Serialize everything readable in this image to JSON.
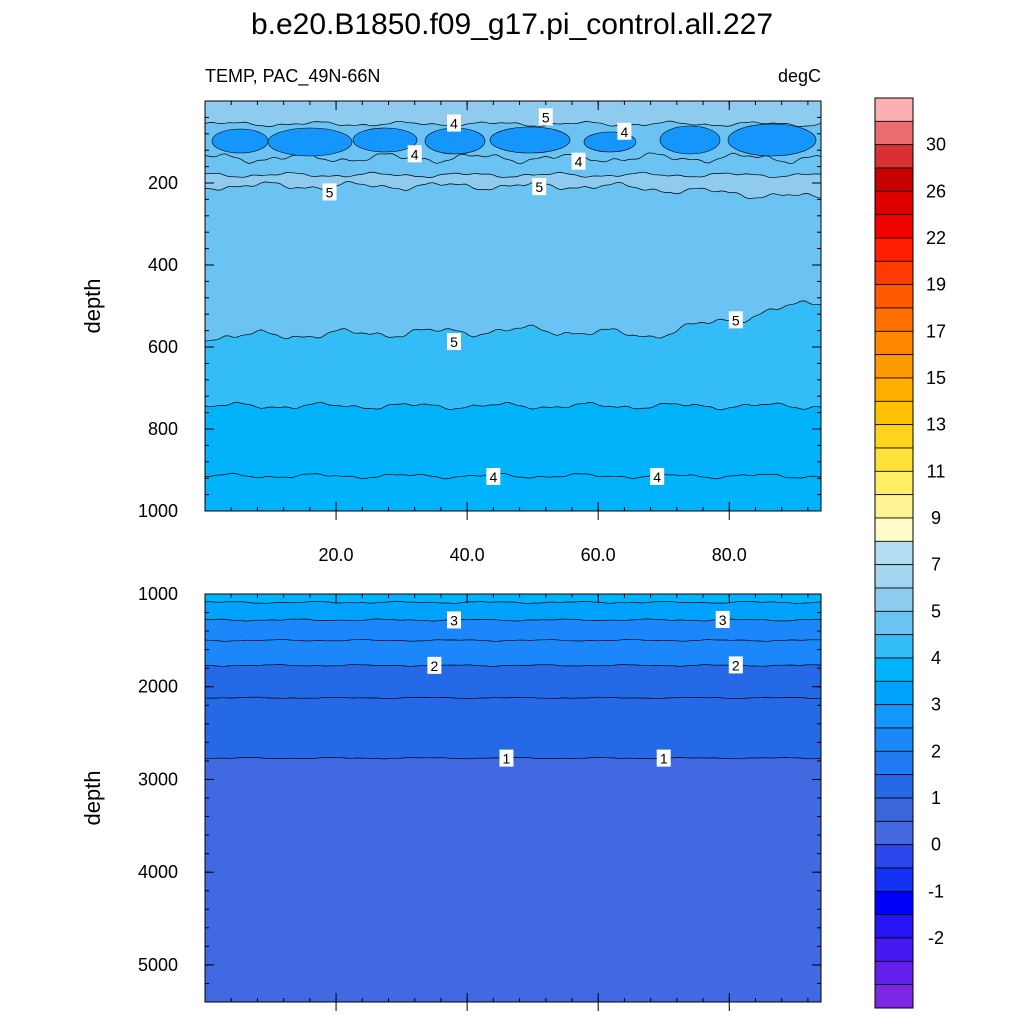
{
  "chart_data": {
    "type": "contour",
    "title": "b.e20.B1850.f09_g17.pi_control.all.227",
    "variable_label": "TEMP, PAC_49N-66N",
    "units_label": "degC",
    "x": {
      "range": [
        0,
        94
      ],
      "ticks": [
        20,
        40,
        60,
        80
      ],
      "tick_labels": [
        "20.0",
        "40.0",
        "60.0",
        "80.0"
      ]
    },
    "panels": [
      {
        "name": "upper",
        "ylabel": "depth",
        "yrange": [
          0,
          1000
        ],
        "y_reversed": true,
        "yticks": [
          200,
          400,
          600,
          800,
          1000
        ],
        "ytick_labels": [
          "200",
          "400",
          "600",
          "800",
          "1000"
        ],
        "contour_labels": [
          {
            "text": "5",
            "x": 52,
            "y": 40
          },
          {
            "text": "4",
            "x": 38,
            "y": 55
          },
          {
            "text": "4",
            "x": 64,
            "y": 75
          },
          {
            "text": "4",
            "x": 32,
            "y": 130
          },
          {
            "text": "4",
            "x": 57,
            "y": 148
          },
          {
            "text": "5",
            "x": 19,
            "y": 223
          },
          {
            "text": "5",
            "x": 51,
            "y": 210
          },
          {
            "text": "5",
            "x": 81,
            "y": 535
          },
          {
            "text": "5",
            "x": 38,
            "y": 588
          },
          {
            "text": "4",
            "x": 44,
            "y": 917
          },
          {
            "text": "4",
            "x": 69,
            "y": 917
          }
        ]
      },
      {
        "name": "lower",
        "ylabel": "depth",
        "yrange": [
          1000,
          5400
        ],
        "y_reversed": true,
        "yticks": [
          1000,
          2000,
          3000,
          4000,
          5000
        ],
        "ytick_labels": [
          "1000",
          "2000",
          "3000",
          "4000",
          "5000"
        ],
        "contour_labels": [
          {
            "text": "3",
            "x": 38,
            "y": 1285
          },
          {
            "text": "3",
            "x": 79,
            "y": 1280
          },
          {
            "text": "2",
            "x": 35,
            "y": 1775
          },
          {
            "text": "2",
            "x": 81,
            "y": 1770
          },
          {
            "text": "1",
            "x": 46,
            "y": 2775
          },
          {
            "text": "1",
            "x": 70,
            "y": 2775
          }
        ]
      }
    ],
    "colorbar": {
      "labels": [
        "30",
        "26",
        "22",
        "19",
        "17",
        "15",
        "13",
        "11",
        "9",
        "7",
        "5",
        "4",
        "3",
        "2",
        "1",
        "0",
        "-1",
        "-2"
      ],
      "colors": [
        "#FDB0B4",
        "#EB6E6E",
        "#D93131",
        "#C70000",
        "#DF0000",
        "#F40000",
        "#FF1C00",
        "#FF3A00",
        "#FF5A00",
        "#FF7000",
        "#FF8600",
        "#FF9A00",
        "#FFAE00",
        "#FFC200",
        "#FFD41A",
        "#FFE238",
        "#FFEE66",
        "#FFF494",
        "#FFFCC8",
        "#B5DDF1",
        "#A4D6EF",
        "#8ECBEE",
        "#6BC3F3",
        "#33BCF6",
        "#00B3FA",
        "#00A3FB",
        "#1496FC",
        "#1C87FB",
        "#2078F3",
        "#2669E6",
        "#3A66DC",
        "#4468DE",
        "#2B48EC",
        "#1431F5",
        "#0000FA",
        "#2514F4",
        "#4519F0",
        "#631FEB",
        "#7E26E6"
      ]
    },
    "fill_colors": {
      "top_warm": "#8ECBEE",
      "core_cold": "#1496FC",
      "mid_layer": "#6BC3F3",
      "deep_4": "#33BCF6",
      "bottom_upper": "#00B3FA",
      "lower_3to4": "#00B3FA",
      "lower_3": "#00A3FB",
      "lower_2to3": "#1C87FB",
      "lower_2": "#1C87FB",
      "lower_1to2": "#2669E6",
      "lower_1": "#4169E1"
    }
  }
}
